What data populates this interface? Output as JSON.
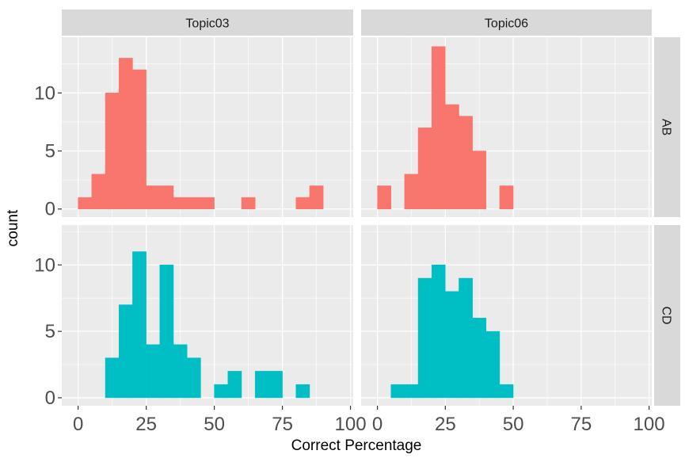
{
  "chart_data": {
    "type": "bar",
    "title": "",
    "xlabel": "Correct Percentage",
    "ylabel": "count",
    "bin_width": 5,
    "xlim": [
      -6,
      101
    ],
    "x_ticks": [
      0,
      25,
      50,
      75,
      100
    ],
    "x_tick_labels": [
      "0",
      "25",
      "50",
      "75",
      "100"
    ],
    "y_ticks": [
      0,
      5,
      10
    ],
    "y_tick_labels": [
      "0",
      "5",
      "10"
    ],
    "grid": true,
    "legend": "none",
    "facet_columns": [
      "Topic03",
      "Topic06"
    ],
    "facet_rows": [
      "AB",
      "CD"
    ],
    "panels": [
      {
        "column": "Topic03",
        "row": "AB",
        "color": "#F8766D",
        "ylim": [
          -0.7,
          14.8
        ],
        "bins": [
          {
            "x": 2.5,
            "count": 1
          },
          {
            "x": 7.5,
            "count": 3
          },
          {
            "x": 12.5,
            "count": 10
          },
          {
            "x": 17.5,
            "count": 13
          },
          {
            "x": 22.5,
            "count": 12
          },
          {
            "x": 27.5,
            "count": 2
          },
          {
            "x": 32.5,
            "count": 2
          },
          {
            "x": 37.5,
            "count": 1
          },
          {
            "x": 42.5,
            "count": 1
          },
          {
            "x": 47.5,
            "count": 1
          },
          {
            "x": 62.5,
            "count": 1
          },
          {
            "x": 82.5,
            "count": 1
          },
          {
            "x": 87.5,
            "count": 2
          }
        ]
      },
      {
        "column": "Topic06",
        "row": "AB",
        "color": "#F8766D",
        "ylim": [
          -0.7,
          14.8
        ],
        "bins": [
          {
            "x": 2.5,
            "count": 2
          },
          {
            "x": 12.5,
            "count": 3
          },
          {
            "x": 17.5,
            "count": 7
          },
          {
            "x": 22.5,
            "count": 14
          },
          {
            "x": 27.5,
            "count": 9
          },
          {
            "x": 32.5,
            "count": 8
          },
          {
            "x": 37.5,
            "count": 5
          },
          {
            "x": 47.5,
            "count": 2
          }
        ]
      },
      {
        "column": "Topic03",
        "row": "CD",
        "color": "#00BFC4",
        "ylim": [
          -0.6,
          13.0
        ],
        "bins": [
          {
            "x": 12.5,
            "count": 3
          },
          {
            "x": 17.5,
            "count": 7
          },
          {
            "x": 22.5,
            "count": 11
          },
          {
            "x": 27.5,
            "count": 4
          },
          {
            "x": 32.5,
            "count": 10
          },
          {
            "x": 37.5,
            "count": 4
          },
          {
            "x": 42.5,
            "count": 3
          },
          {
            "x": 52.5,
            "count": 1
          },
          {
            "x": 57.5,
            "count": 2
          },
          {
            "x": 67.5,
            "count": 2
          },
          {
            "x": 72.5,
            "count": 2
          },
          {
            "x": 82.5,
            "count": 1
          }
        ]
      },
      {
        "column": "Topic06",
        "row": "CD",
        "color": "#00BFC4",
        "ylim": [
          -0.6,
          13.0
        ],
        "bins": [
          {
            "x": 7.5,
            "count": 1
          },
          {
            "x": 12.5,
            "count": 1
          },
          {
            "x": 17.5,
            "count": 9
          },
          {
            "x": 22.5,
            "count": 10
          },
          {
            "x": 27.5,
            "count": 8
          },
          {
            "x": 32.5,
            "count": 9
          },
          {
            "x": 37.5,
            "count": 6
          },
          {
            "x": 42.5,
            "count": 5
          },
          {
            "x": 47.5,
            "count": 1
          }
        ]
      }
    ]
  },
  "colors": {
    "panel_background": "#EBEBEB",
    "grid_line": "#FFFFFF",
    "strip_background": "#D9D9D9",
    "series_ab": "#F8766D",
    "series_cd": "#00BFC4"
  }
}
